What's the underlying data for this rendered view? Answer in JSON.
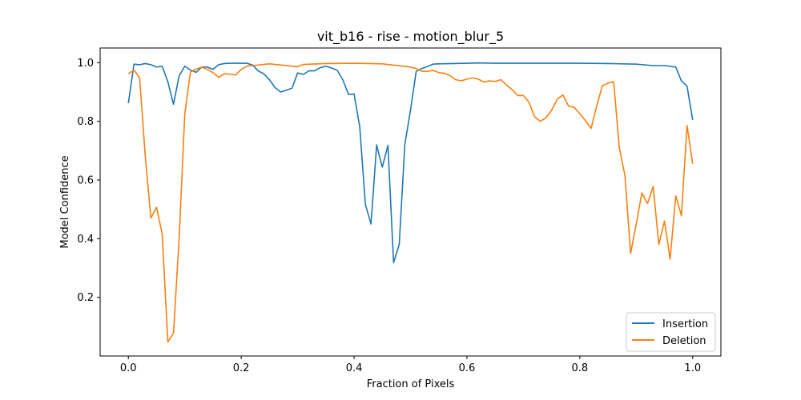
{
  "chart_data": {
    "type": "line",
    "title": "vit_b16 - rise - motion_blur_5",
    "xlabel": "Fraction of Pixels",
    "ylabel": "Model Confidence",
    "xlim": [
      -0.05,
      1.05
    ],
    "ylim": [
      0.0,
      1.05
    ],
    "xticks": [
      0.0,
      0.2,
      0.4,
      0.6,
      0.8,
      1.0
    ],
    "xtick_labels": [
      "0.0",
      "0.2",
      "0.4",
      "0.6",
      "0.8",
      "1.0"
    ],
    "yticks": [
      0.2,
      0.4,
      0.6,
      0.8,
      1.0
    ],
    "ytick_labels": [
      "0.2",
      "0.4",
      "0.6",
      "0.8",
      "1.0"
    ],
    "grid": false,
    "legend_position": "lower-right",
    "series": [
      {
        "name": "Insertion",
        "color": "#1f77b4",
        "x": [
          0.0,
          0.01,
          0.02,
          0.03,
          0.04,
          0.05,
          0.06,
          0.07,
          0.08,
          0.09,
          0.1,
          0.11,
          0.12,
          0.13,
          0.14,
          0.15,
          0.16,
          0.17,
          0.18,
          0.19,
          0.2,
          0.21,
          0.22,
          0.23,
          0.24,
          0.25,
          0.26,
          0.27,
          0.28,
          0.29,
          0.3,
          0.31,
          0.32,
          0.33,
          0.34,
          0.35,
          0.36,
          0.37,
          0.38,
          0.39,
          0.4,
          0.41,
          0.42,
          0.43,
          0.44,
          0.445,
          0.45,
          0.46,
          0.47,
          0.48,
          0.49,
          0.5,
          0.51,
          0.52,
          0.53,
          0.54,
          0.55,
          0.6,
          0.62,
          0.65,
          0.7,
          0.75,
          0.8,
          0.85,
          0.9,
          0.93,
          0.95,
          0.97,
          0.98,
          0.99,
          1.0
        ],
        "y": [
          0.862,
          0.995,
          0.993,
          0.997,
          0.993,
          0.985,
          0.988,
          0.935,
          0.858,
          0.955,
          0.988,
          0.975,
          0.967,
          0.985,
          0.985,
          0.977,
          0.993,
          0.997,
          0.998,
          0.998,
          0.998,
          0.998,
          0.992,
          0.972,
          0.962,
          0.942,
          0.915,
          0.9,
          0.906,
          0.913,
          0.965,
          0.96,
          0.972,
          0.972,
          0.983,
          0.988,
          0.982,
          0.974,
          0.942,
          0.892,
          0.893,
          0.782,
          0.517,
          0.45,
          0.72,
          0.68,
          0.644,
          0.718,
          0.318,
          0.38,
          0.722,
          0.838,
          0.97,
          0.98,
          0.987,
          0.995,
          0.996,
          0.998,
          0.999,
          0.998,
          0.998,
          0.998,
          0.998,
          0.997,
          0.995,
          0.99,
          0.99,
          0.985,
          0.938,
          0.92,
          0.805
        ]
      },
      {
        "name": "Deletion",
        "color": "#ff7f0e",
        "x": [
          0.0,
          0.01,
          0.02,
          0.03,
          0.04,
          0.05,
          0.06,
          0.07,
          0.08,
          0.09,
          0.1,
          0.11,
          0.12,
          0.13,
          0.14,
          0.15,
          0.16,
          0.17,
          0.18,
          0.19,
          0.2,
          0.21,
          0.22,
          0.25,
          0.3,
          0.31,
          0.35,
          0.4,
          0.45,
          0.5,
          0.51,
          0.52,
          0.53,
          0.54,
          0.55,
          0.56,
          0.57,
          0.58,
          0.59,
          0.6,
          0.61,
          0.62,
          0.63,
          0.64,
          0.65,
          0.66,
          0.67,
          0.68,
          0.69,
          0.7,
          0.71,
          0.72,
          0.73,
          0.74,
          0.75,
          0.76,
          0.77,
          0.78,
          0.79,
          0.8,
          0.81,
          0.82,
          0.83,
          0.84,
          0.85,
          0.86,
          0.87,
          0.88,
          0.89,
          0.9,
          0.91,
          0.92,
          0.93,
          0.94,
          0.95,
          0.96,
          0.97,
          0.98,
          0.99,
          1.0
        ],
        "y": [
          0.962,
          0.975,
          0.948,
          0.68,
          0.47,
          0.507,
          0.415,
          0.048,
          0.078,
          0.4,
          0.825,
          0.968,
          0.978,
          0.985,
          0.977,
          0.966,
          0.95,
          0.962,
          0.961,
          0.958,
          0.977,
          0.988,
          0.99,
          0.996,
          0.986,
          0.994,
          0.997,
          0.998,
          0.996,
          0.985,
          0.98,
          0.971,
          0.97,
          0.974,
          0.966,
          0.964,
          0.956,
          0.942,
          0.938,
          0.944,
          0.948,
          0.944,
          0.934,
          0.938,
          0.936,
          0.942,
          0.924,
          0.908,
          0.888,
          0.888,
          0.865,
          0.815,
          0.8,
          0.812,
          0.838,
          0.875,
          0.89,
          0.852,
          0.848,
          0.826,
          0.802,
          0.776,
          0.853,
          0.922,
          0.93,
          0.935,
          0.71,
          0.615,
          0.35,
          0.45,
          0.556,
          0.52,
          0.578,
          0.38,
          0.46,
          0.33,
          0.546,
          0.478,
          0.786,
          0.655
        ]
      }
    ]
  }
}
